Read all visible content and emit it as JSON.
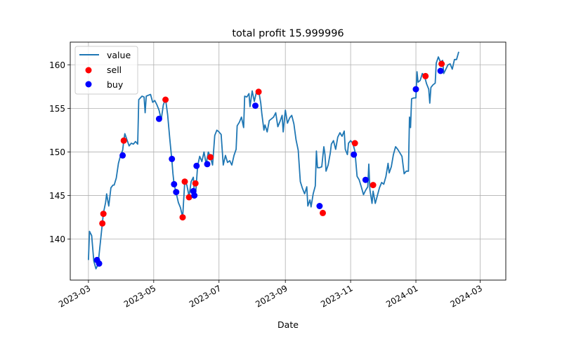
{
  "chart_data": {
    "type": "line",
    "title": "total profit 15.999996",
    "xlabel": "Date",
    "ylabel": "",
    "xlim": [
      "2023-02-12",
      "2024-03-25"
    ],
    "ylim": [
      135.3,
      162.6
    ],
    "grid": true,
    "legend_position": "top-left",
    "x_ticks": [
      "2023-03",
      "2023-05",
      "2023-07",
      "2023-09",
      "2023-11",
      "2024-01",
      "2024-03"
    ],
    "x_tick_dates": [
      "2023-03-01",
      "2023-05-01",
      "2023-07-01",
      "2023-09-01",
      "2023-11-01",
      "2024-01-01",
      "2024-03-01"
    ],
    "y_ticks": [
      140,
      145,
      150,
      155,
      160
    ],
    "colors": {
      "value": "#1f77b4",
      "sell": "#ff0000",
      "buy": "#0000ff"
    },
    "series": [
      {
        "name": "value",
        "kind": "line",
        "points": [
          [
            "2023-03-01",
            137.6
          ],
          [
            "2023-03-02",
            140.9
          ],
          [
            "2023-03-04",
            140.4
          ],
          [
            "2023-03-06",
            137.5
          ],
          [
            "2023-03-08",
            136.6
          ],
          [
            "2023-03-10",
            137.1
          ],
          [
            "2023-03-12",
            139.5
          ],
          [
            "2023-03-14",
            141.8
          ],
          [
            "2023-03-15",
            143.0
          ],
          [
            "2023-03-17",
            144.2
          ],
          [
            "2023-03-18",
            145.2
          ],
          [
            "2023-03-20",
            143.8
          ],
          [
            "2023-03-22",
            145.9
          ],
          [
            "2023-03-24",
            146.2
          ],
          [
            "2023-03-25",
            146.2
          ],
          [
            "2023-03-27",
            147.0
          ],
          [
            "2023-03-29",
            148.7
          ],
          [
            "2023-03-31",
            149.6
          ],
          [
            "2023-04-02",
            150.2
          ],
          [
            "2023-04-03",
            151.3
          ],
          [
            "2023-04-04",
            152.1
          ],
          [
            "2023-04-06",
            151.4
          ],
          [
            "2023-04-08",
            150.7
          ],
          [
            "2023-04-10",
            151.0
          ],
          [
            "2023-04-12",
            150.9
          ],
          [
            "2023-04-14",
            151.2
          ],
          [
            "2023-04-16",
            150.9
          ],
          [
            "2023-04-17",
            156.0
          ],
          [
            "2023-04-20",
            156.4
          ],
          [
            "2023-04-22",
            156.3
          ],
          [
            "2023-04-23",
            154.5
          ],
          [
            "2023-04-24",
            156.4
          ],
          [
            "2023-04-26",
            156.5
          ],
          [
            "2023-04-28",
            156.6
          ],
          [
            "2023-04-30",
            155.7
          ],
          [
            "2023-05-02",
            155.9
          ],
          [
            "2023-05-04",
            155.4
          ],
          [
            "2023-05-06",
            154.8
          ],
          [
            "2023-05-08",
            153.7
          ],
          [
            "2023-05-10",
            155.4
          ],
          [
            "2023-05-12",
            156.1
          ],
          [
            "2023-05-14",
            154.3
          ],
          [
            "2023-05-16",
            151.5
          ],
          [
            "2023-05-18",
            149.0
          ],
          [
            "2023-05-19",
            147.5
          ],
          [
            "2023-05-20",
            146.3
          ],
          [
            "2023-05-22",
            145.3
          ],
          [
            "2023-05-24",
            144.2
          ],
          [
            "2023-05-26",
            143.6
          ],
          [
            "2023-05-28",
            142.5
          ],
          [
            "2023-05-30",
            146.6
          ],
          [
            "2023-06-01",
            146.2
          ],
          [
            "2023-06-03",
            144.9
          ],
          [
            "2023-06-05",
            146.6
          ],
          [
            "2023-06-07",
            147.1
          ],
          [
            "2023-06-08",
            145.3
          ],
          [
            "2023-06-09",
            144.9
          ],
          [
            "2023-06-11",
            148.4
          ],
          [
            "2023-06-13",
            149.5
          ],
          [
            "2023-06-15",
            148.9
          ],
          [
            "2023-06-17",
            150.0
          ],
          [
            "2023-06-19",
            148.6
          ],
          [
            "2023-06-21",
            150.0
          ],
          [
            "2023-06-23",
            149.4
          ],
          [
            "2023-06-25",
            148.5
          ],
          [
            "2023-06-27",
            151.9
          ],
          [
            "2023-06-29",
            152.5
          ],
          [
            "2023-07-01",
            152.3
          ],
          [
            "2023-07-03",
            152.0
          ],
          [
            "2023-07-05",
            148.5
          ],
          [
            "2023-07-07",
            149.6
          ],
          [
            "2023-07-09",
            148.8
          ],
          [
            "2023-07-11",
            149.0
          ],
          [
            "2023-07-13",
            148.5
          ],
          [
            "2023-07-15",
            149.6
          ],
          [
            "2023-07-17",
            150.3
          ],
          [
            "2023-07-18",
            153.0
          ],
          [
            "2023-07-20",
            153.4
          ],
          [
            "2023-07-22",
            154.0
          ],
          [
            "2023-07-24",
            152.8
          ],
          [
            "2023-07-25",
            156.4
          ],
          [
            "2023-07-27",
            156.3
          ],
          [
            "2023-07-29",
            156.7
          ],
          [
            "2023-07-30",
            155.2
          ],
          [
            "2023-08-01",
            157.0
          ],
          [
            "2023-08-03",
            155.8
          ],
          [
            "2023-08-05",
            156.9
          ],
          [
            "2023-08-07",
            157.1
          ],
          [
            "2023-08-09",
            155.6
          ],
          [
            "2023-08-10",
            154.4
          ],
          [
            "2023-08-12",
            152.5
          ],
          [
            "2023-08-13",
            153.1
          ],
          [
            "2023-08-15",
            152.3
          ],
          [
            "2023-08-17",
            153.6
          ],
          [
            "2023-08-19",
            153.8
          ],
          [
            "2023-08-21",
            154.0
          ],
          [
            "2023-08-23",
            154.5
          ],
          [
            "2023-08-25",
            152.9
          ],
          [
            "2023-08-27",
            153.5
          ],
          [
            "2023-08-29",
            154.2
          ],
          [
            "2023-08-30",
            152.3
          ],
          [
            "2023-09-01",
            154.8
          ],
          [
            "2023-09-03",
            153.3
          ],
          [
            "2023-09-05",
            153.9
          ],
          [
            "2023-09-07",
            154.2
          ],
          [
            "2023-09-09",
            153.2
          ],
          [
            "2023-09-11",
            151.4
          ],
          [
            "2023-09-13",
            150.2
          ],
          [
            "2023-09-15",
            146.6
          ],
          [
            "2023-09-17",
            145.8
          ],
          [
            "2023-09-19",
            145.2
          ],
          [
            "2023-09-21",
            146.0
          ],
          [
            "2023-09-22",
            143.8
          ],
          [
            "2023-09-24",
            144.5
          ],
          [
            "2023-09-25",
            143.7
          ],
          [
            "2023-09-27",
            145.2
          ],
          [
            "2023-09-29",
            146.1
          ],
          [
            "2023-09-30",
            150.1
          ],
          [
            "2023-10-01",
            148.2
          ],
          [
            "2023-10-03",
            148.2
          ],
          [
            "2023-10-05",
            148.3
          ],
          [
            "2023-10-07",
            150.6
          ],
          [
            "2023-10-08",
            149.7
          ],
          [
            "2023-10-09",
            147.8
          ],
          [
            "2023-10-11",
            148.5
          ],
          [
            "2023-10-13",
            149.9
          ],
          [
            "2023-10-14",
            150.9
          ],
          [
            "2023-10-16",
            151.3
          ],
          [
            "2023-10-18",
            150.3
          ],
          [
            "2023-10-20",
            151.7
          ],
          [
            "2023-10-22",
            152.2
          ],
          [
            "2023-10-24",
            151.8
          ],
          [
            "2023-10-26",
            152.4
          ],
          [
            "2023-10-27",
            150.3
          ],
          [
            "2023-10-29",
            149.7
          ],
          [
            "2023-10-30",
            151.0
          ],
          [
            "2023-11-01",
            151.3
          ],
          [
            "2023-11-03",
            151.0
          ],
          [
            "2023-11-05",
            150.1
          ],
          [
            "2023-11-07",
            147.2
          ],
          [
            "2023-11-09",
            146.8
          ],
          [
            "2023-11-11",
            146.0
          ],
          [
            "2023-11-13",
            145.1
          ],
          [
            "2023-11-15",
            145.6
          ],
          [
            "2023-11-17",
            146.0
          ],
          [
            "2023-11-18",
            148.6
          ],
          [
            "2023-11-19",
            145.7
          ],
          [
            "2023-11-21",
            144.1
          ],
          [
            "2023-11-22",
            145.5
          ],
          [
            "2023-11-24",
            144.1
          ],
          [
            "2023-11-26",
            145.0
          ],
          [
            "2023-11-28",
            145.9
          ],
          [
            "2023-11-30",
            146.5
          ],
          [
            "2023-12-02",
            146.3
          ],
          [
            "2023-12-04",
            147.2
          ],
          [
            "2023-12-06",
            148.7
          ],
          [
            "2023-12-07",
            147.6
          ],
          [
            "2023-12-09",
            148.3
          ],
          [
            "2023-12-11",
            149.7
          ],
          [
            "2023-12-13",
            150.6
          ],
          [
            "2023-12-15",
            150.3
          ],
          [
            "2023-12-17",
            149.9
          ],
          [
            "2023-12-19",
            149.5
          ],
          [
            "2023-12-21",
            147.5
          ],
          [
            "2023-12-23",
            147.8
          ],
          [
            "2023-12-25",
            147.8
          ],
          [
            "2023-12-26",
            154.0
          ],
          [
            "2023-12-27",
            152.8
          ],
          [
            "2023-12-28",
            156.1
          ],
          [
            "2023-12-30",
            156.2
          ],
          [
            "2024-01-01",
            156.2
          ],
          [
            "2024-01-02",
            159.2
          ],
          [
            "2024-01-03",
            158.0
          ],
          [
            "2024-01-05",
            158.2
          ],
          [
            "2024-01-07",
            159.0
          ],
          [
            "2024-01-09",
            158.7
          ],
          [
            "2024-01-11",
            157.8
          ],
          [
            "2024-01-13",
            157.2
          ],
          [
            "2024-01-14",
            155.6
          ],
          [
            "2024-01-15",
            157.4
          ],
          [
            "2024-01-17",
            157.7
          ],
          [
            "2024-01-19",
            157.9
          ],
          [
            "2024-01-20",
            160.2
          ],
          [
            "2024-01-22",
            160.9
          ],
          [
            "2024-01-24",
            160.3
          ],
          [
            "2024-01-26",
            160.5
          ],
          [
            "2024-01-27",
            159.0
          ],
          [
            "2024-01-29",
            159.5
          ],
          [
            "2024-01-31",
            160.0
          ],
          [
            "2024-02-02",
            160.1
          ],
          [
            "2024-02-04",
            159.5
          ],
          [
            "2024-02-06",
            160.6
          ],
          [
            "2024-02-08",
            160.6
          ],
          [
            "2024-02-10",
            161.5
          ]
        ]
      },
      {
        "name": "sell",
        "kind": "scatter",
        "points": [
          [
            "2023-03-14",
            141.8
          ],
          [
            "2023-03-15",
            142.9
          ],
          [
            "2023-04-03",
            151.3
          ],
          [
            "2023-05-12",
            156.0
          ],
          [
            "2023-05-28",
            142.5
          ],
          [
            "2023-05-30",
            146.6
          ],
          [
            "2023-06-03",
            144.8
          ],
          [
            "2023-06-09",
            146.4
          ],
          [
            "2023-06-23",
            149.4
          ],
          [
            "2023-08-07",
            156.9
          ],
          [
            "2023-10-06",
            143.0
          ],
          [
            "2023-11-05",
            151.0
          ],
          [
            "2023-11-22",
            146.2
          ],
          [
            "2024-01-10",
            158.7
          ],
          [
            "2024-01-25",
            160.1
          ]
        ]
      },
      {
        "name": "buy",
        "kind": "scatter",
        "points": [
          [
            "2023-03-09",
            137.6
          ],
          [
            "2023-03-11",
            137.2
          ],
          [
            "2023-04-02",
            149.6
          ],
          [
            "2023-05-06",
            153.8
          ],
          [
            "2023-05-18",
            149.2
          ],
          [
            "2023-05-20",
            146.3
          ],
          [
            "2023-05-22",
            145.4
          ],
          [
            "2023-06-07",
            145.5
          ],
          [
            "2023-06-08",
            145.0
          ],
          [
            "2023-06-10",
            148.4
          ],
          [
            "2023-06-20",
            148.6
          ],
          [
            "2023-08-04",
            155.3
          ],
          [
            "2023-10-03",
            143.8
          ],
          [
            "2023-11-04",
            149.7
          ],
          [
            "2023-11-15",
            146.8
          ],
          [
            "2024-01-01",
            157.2
          ],
          [
            "2024-01-24",
            159.3
          ]
        ]
      }
    ]
  }
}
